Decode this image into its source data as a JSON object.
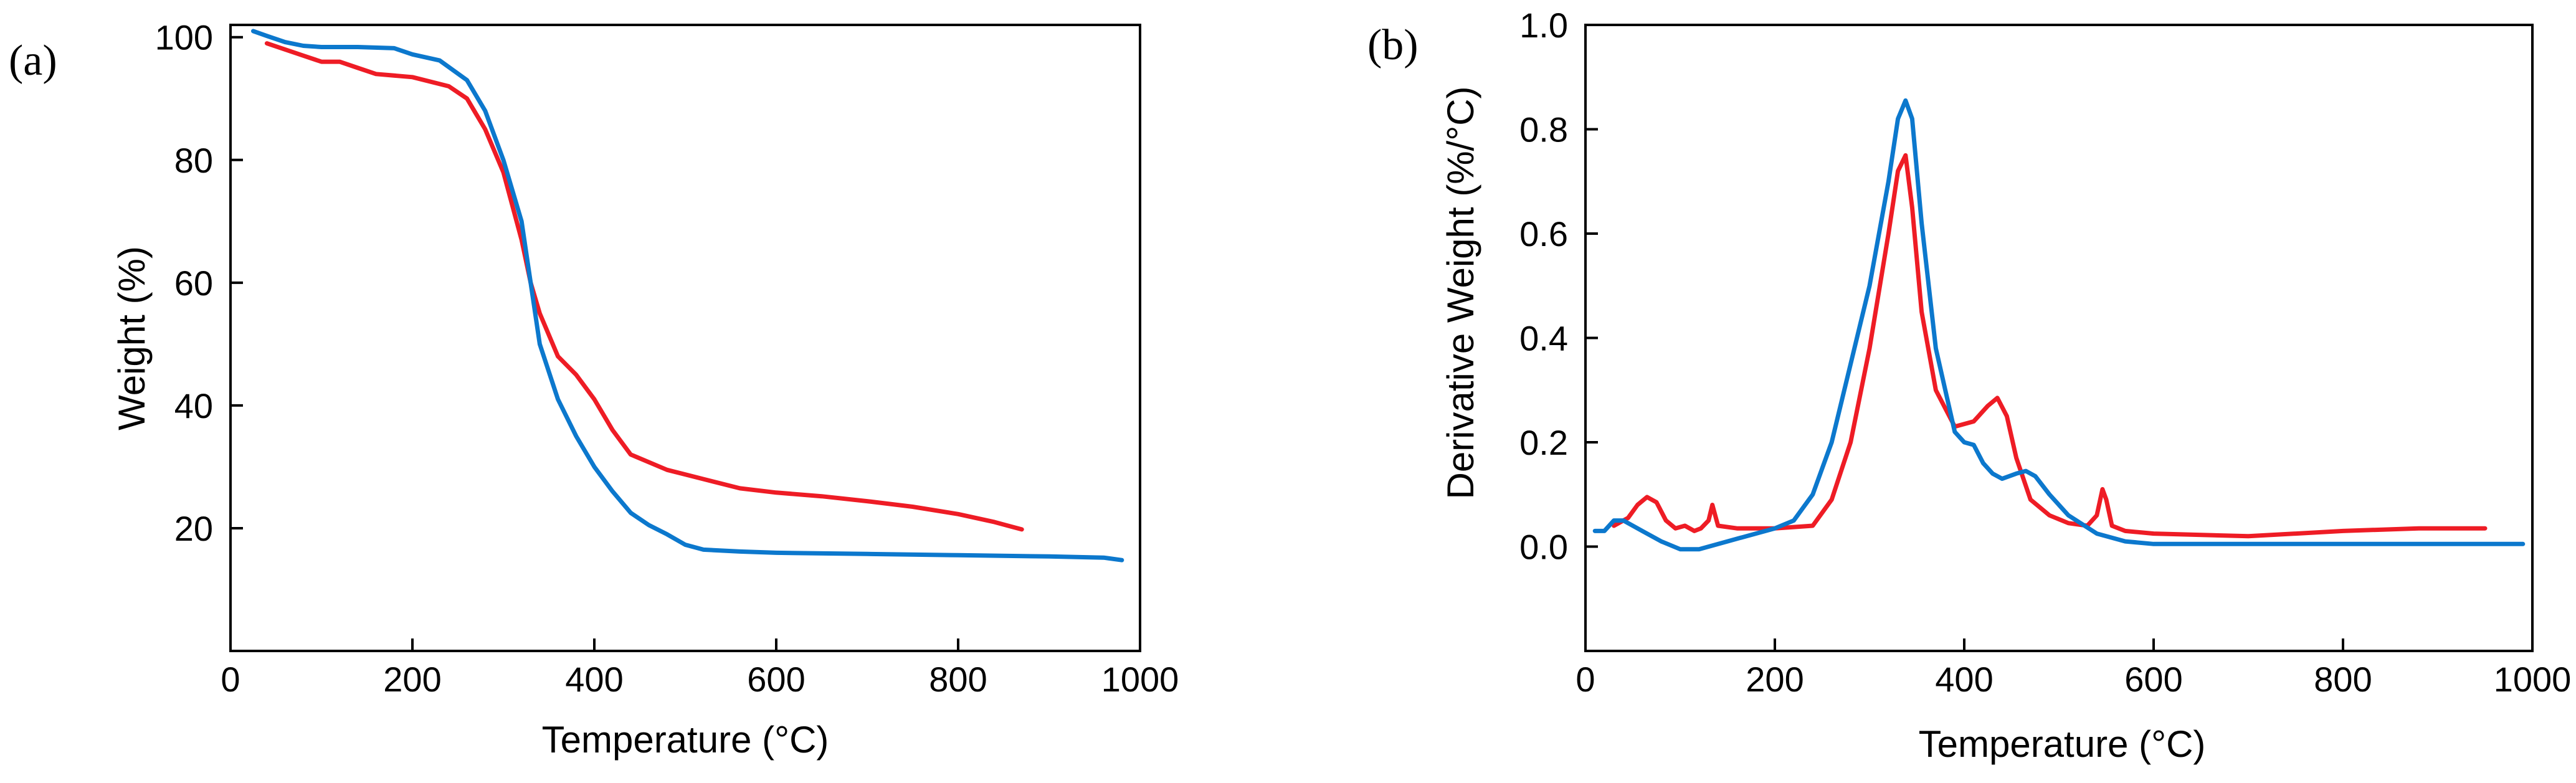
{
  "chart_data": [
    {
      "panel": "(a)",
      "type": "line",
      "xlabel": "Temperature  (°C)",
      "ylabel": "Weight (%)",
      "xlim": [
        0,
        1000
      ],
      "ylim": [
        0,
        102
      ],
      "xticks": [
        0,
        200,
        400,
        600,
        800,
        1000
      ],
      "yticks": [
        20,
        40,
        60,
        80,
        100
      ],
      "grid": false,
      "series": [
        {
          "name": "red",
          "color": "#ee1c25",
          "x": [
            40,
            60,
            80,
            100,
            120,
            140,
            160,
            200,
            240,
            260,
            280,
            300,
            320,
            330,
            340,
            360,
            380,
            400,
            420,
            440,
            480,
            520,
            560,
            600,
            650,
            700,
            750,
            800,
            840,
            860,
            870
          ],
          "y": [
            99,
            98,
            97,
            96,
            96,
            95,
            94,
            93.5,
            92,
            90,
            85,
            78,
            67,
            60,
            55,
            48,
            45,
            41,
            36,
            32,
            29.5,
            28,
            26.5,
            25.8,
            25.2,
            24.4,
            23.5,
            22.3,
            21,
            20.2,
            19.8
          ]
        },
        {
          "name": "blue",
          "color": "#0c78cd",
          "x": [
            25,
            40,
            60,
            80,
            100,
            140,
            180,
            200,
            230,
            260,
            280,
            300,
            320,
            330,
            340,
            360,
            380,
            400,
            420,
            440,
            460,
            480,
            500,
            520,
            560,
            600,
            700,
            800,
            900,
            960,
            980
          ],
          "y": [
            101,
            100.2,
            99.2,
            98.6,
            98.4,
            98.4,
            98.2,
            97.2,
            96.2,
            93,
            88,
            80,
            70,
            60,
            50,
            41,
            35,
            30,
            26,
            22.5,
            20.5,
            19,
            17.3,
            16.5,
            16.2,
            16,
            15.8,
            15.6,
            15.4,
            15.2,
            14.8
          ]
        }
      ]
    },
    {
      "panel": "(b)",
      "type": "line",
      "xlabel": "Temperature  (°C)",
      "ylabel": "Derivative  Weight (%/°C)",
      "xlim": [
        0,
        1000
      ],
      "ylim": [
        -0.2,
        1.0
      ],
      "xticks": [
        0,
        200,
        400,
        600,
        800,
        1000
      ],
      "yticks": [
        0.0,
        0.2,
        0.4,
        0.6,
        0.8,
        1.0
      ],
      "ytick_labels": [
        "0.0",
        "0.2",
        "0.4",
        "0.6",
        "0.8",
        "1.0"
      ],
      "grid": false,
      "series": [
        {
          "name": "red",
          "color": "#ee1c25",
          "x": [
            30,
            45,
            55,
            65,
            75,
            85,
            95,
            105,
            115,
            122,
            130,
            134,
            140,
            160,
            200,
            240,
            260,
            280,
            300,
            320,
            330,
            338,
            345,
            355,
            370,
            390,
            410,
            425,
            435,
            445,
            455,
            470,
            490,
            510,
            530,
            540,
            546,
            550,
            556,
            570,
            600,
            700,
            800,
            880,
            950
          ],
          "y": [
            0.04,
            0.055,
            0.08,
            0.095,
            0.085,
            0.05,
            0.035,
            0.04,
            0.03,
            0.035,
            0.05,
            0.08,
            0.04,
            0.035,
            0.035,
            0.04,
            0.09,
            0.2,
            0.38,
            0.6,
            0.72,
            0.75,
            0.65,
            0.45,
            0.3,
            0.23,
            0.24,
            0.27,
            0.285,
            0.25,
            0.17,
            0.09,
            0.06,
            0.045,
            0.04,
            0.06,
            0.11,
            0.09,
            0.04,
            0.03,
            0.025,
            0.02,
            0.03,
            0.035,
            0.035
          ]
        },
        {
          "name": "blue",
          "color": "#0c78cd",
          "x": [
            10,
            20,
            30,
            40,
            60,
            80,
            100,
            120,
            150,
            200,
            220,
            240,
            260,
            280,
            300,
            320,
            330,
            338,
            345,
            355,
            370,
            390,
            400,
            410,
            420,
            430,
            440,
            455,
            465,
            475,
            490,
            510,
            540,
            570,
            600,
            700,
            800,
            900,
            990
          ],
          "y": [
            0.03,
            0.03,
            0.05,
            0.05,
            0.03,
            0.01,
            -0.005,
            -0.005,
            0.01,
            0.035,
            0.05,
            0.1,
            0.2,
            0.35,
            0.5,
            0.7,
            0.82,
            0.855,
            0.82,
            0.62,
            0.38,
            0.22,
            0.2,
            0.195,
            0.16,
            0.14,
            0.13,
            0.14,
            0.145,
            0.135,
            0.1,
            0.06,
            0.025,
            0.01,
            0.005,
            0.005,
            0.005,
            0.005,
            0.005
          ]
        }
      ]
    }
  ]
}
